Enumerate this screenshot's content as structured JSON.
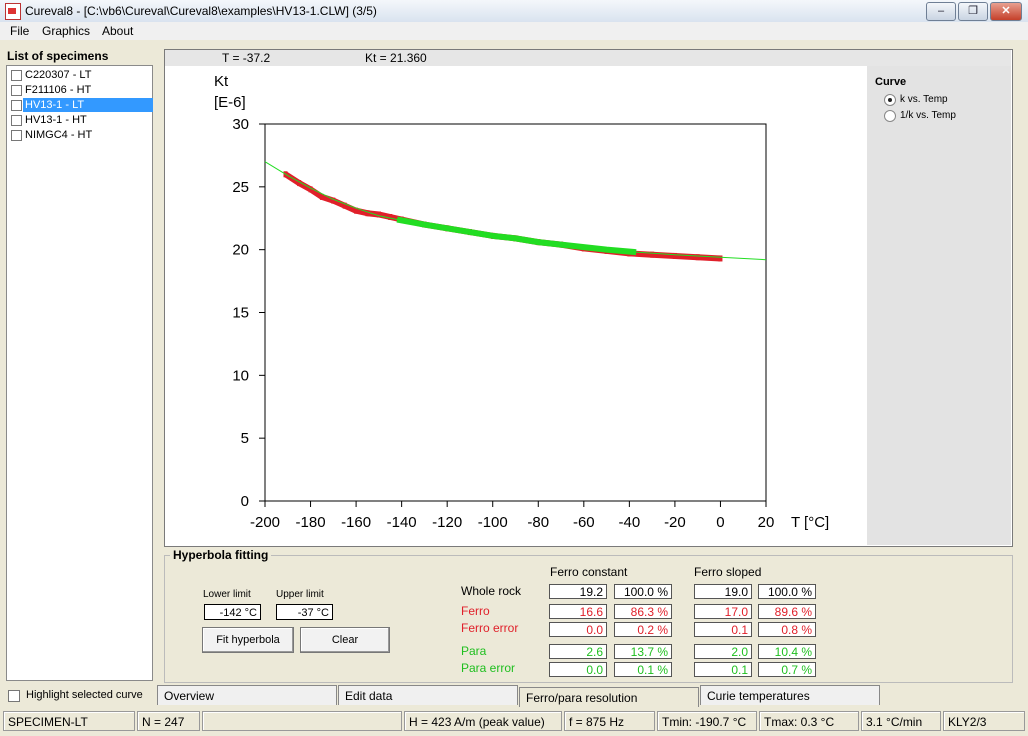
{
  "window": {
    "title": "Cureval8 - [C:\\vb6\\Cureval\\Cureval8\\examples\\HV13-1.CLW]  (3/5)"
  },
  "menu": [
    "File",
    "Graphics",
    "About"
  ],
  "specimens": {
    "title": "List of specimens",
    "items": [
      {
        "label": "C220307 - LT",
        "checked": false,
        "selected": false
      },
      {
        "label": "F211106 - HT",
        "checked": false,
        "selected": false
      },
      {
        "label": "HV13-1 - LT",
        "checked": false,
        "selected": true
      },
      {
        "label": "HV13-1 - HT",
        "checked": false,
        "selected": false
      },
      {
        "label": "NIMGC4 - HT",
        "checked": false,
        "selected": false
      }
    ]
  },
  "readout": {
    "t": "T = -37.2",
    "kt": "Kt = 21.360"
  },
  "curve": {
    "title": "Curve",
    "options": [
      {
        "label": "k vs. Temp",
        "selected": true
      },
      {
        "label": "1/k vs. Temp",
        "selected": false
      }
    ]
  },
  "chart_data": {
    "type": "line",
    "ylabel": "Kt",
    "yunit": "[E-6]",
    "xlabel": "T [°C]",
    "xlim": [
      -200,
      20
    ],
    "ylim": [
      0,
      30
    ],
    "xticks": [
      -200,
      -180,
      -160,
      -140,
      -120,
      -100,
      -80,
      -60,
      -40,
      -20,
      0,
      20
    ],
    "yticks": [
      0,
      5,
      10,
      15,
      20,
      25,
      30
    ],
    "colors": {
      "measured": "#e0202a",
      "fit": "#22dd22"
    },
    "series": [
      {
        "role": "measured",
        "x": [
          -191,
          -185,
          -180,
          -175,
          -170,
          -165,
          -160,
          -155,
          -150,
          -145,
          -140,
          -130,
          -120,
          -110,
          -100,
          -90,
          -80,
          -70,
          -60,
          -50,
          -40,
          -30,
          -20,
          -10,
          0
        ],
        "y": [
          26.0,
          25.3,
          24.8,
          24.2,
          23.9,
          23.5,
          23.1,
          22.9,
          22.8,
          22.6,
          22.4,
          22.0,
          21.7,
          21.4,
          21.1,
          20.9,
          20.6,
          20.4,
          20.1,
          19.9,
          19.7,
          19.6,
          19.5,
          19.4,
          19.3
        ]
      },
      {
        "role": "fit",
        "x": [
          -200,
          -190,
          -180,
          -170,
          -160,
          -150,
          -142,
          -130,
          -120,
          -110,
          -100,
          -90,
          -80,
          -70,
          -60,
          -50,
          -37,
          -20,
          0,
          20
        ],
        "y": [
          27.0,
          25.9,
          24.9,
          24.0,
          23.3,
          22.7,
          22.4,
          22.0,
          21.7,
          21.4,
          21.1,
          20.9,
          20.6,
          20.4,
          20.2,
          20.0,
          19.8,
          19.6,
          19.4,
          19.2
        ]
      }
    ]
  },
  "hyperbola": {
    "title": "Hyperbola fitting",
    "lower_label": "Lower limit",
    "upper_label": "Upper limit",
    "lower_value": "-142 °C",
    "upper_value": "-37 °C",
    "fit_button": "Fit hyperbola",
    "clear_button": "Clear",
    "col_const": "Ferro constant",
    "col_sloped": "Ferro sloped",
    "rows": {
      "whole": {
        "label": "Whole rock",
        "c1": "19.2",
        "c2": "100.0 %",
        "s1": "19.0",
        "s2": "100.0 %"
      },
      "ferro": {
        "label": "Ferro",
        "c1": "16.6",
        "c2": "86.3 %",
        "s1": "17.0",
        "s2": "89.6 %"
      },
      "ferro_err": {
        "label": "Ferro error",
        "c1": "0.0",
        "c2": "0.2 %",
        "s1": "0.1",
        "s2": "0.8 %"
      },
      "para": {
        "label": "Para",
        "c1": "2.6",
        "c2": "13.7 %",
        "s1": "2.0",
        "s2": "10.4 %"
      },
      "para_err": {
        "label": "Para error",
        "c1": "0.0",
        "c2": "0.1 %",
        "s1": "0.1",
        "s2": "0.7 %"
      }
    }
  },
  "highlight_label": "Highlight selected curve",
  "tabs": [
    "Overview",
    "Edit data",
    "Ferro/para resolution",
    "Curie temperatures"
  ],
  "status": [
    "SPECIMEN-LT",
    "N = 247",
    "",
    "H = 423 A/m (peak value)",
    "f = 875 Hz",
    "Tmin: -190.7 °C",
    "Tmax: 0.3 °C",
    "3.1 °C/min",
    "KLY2/3"
  ]
}
